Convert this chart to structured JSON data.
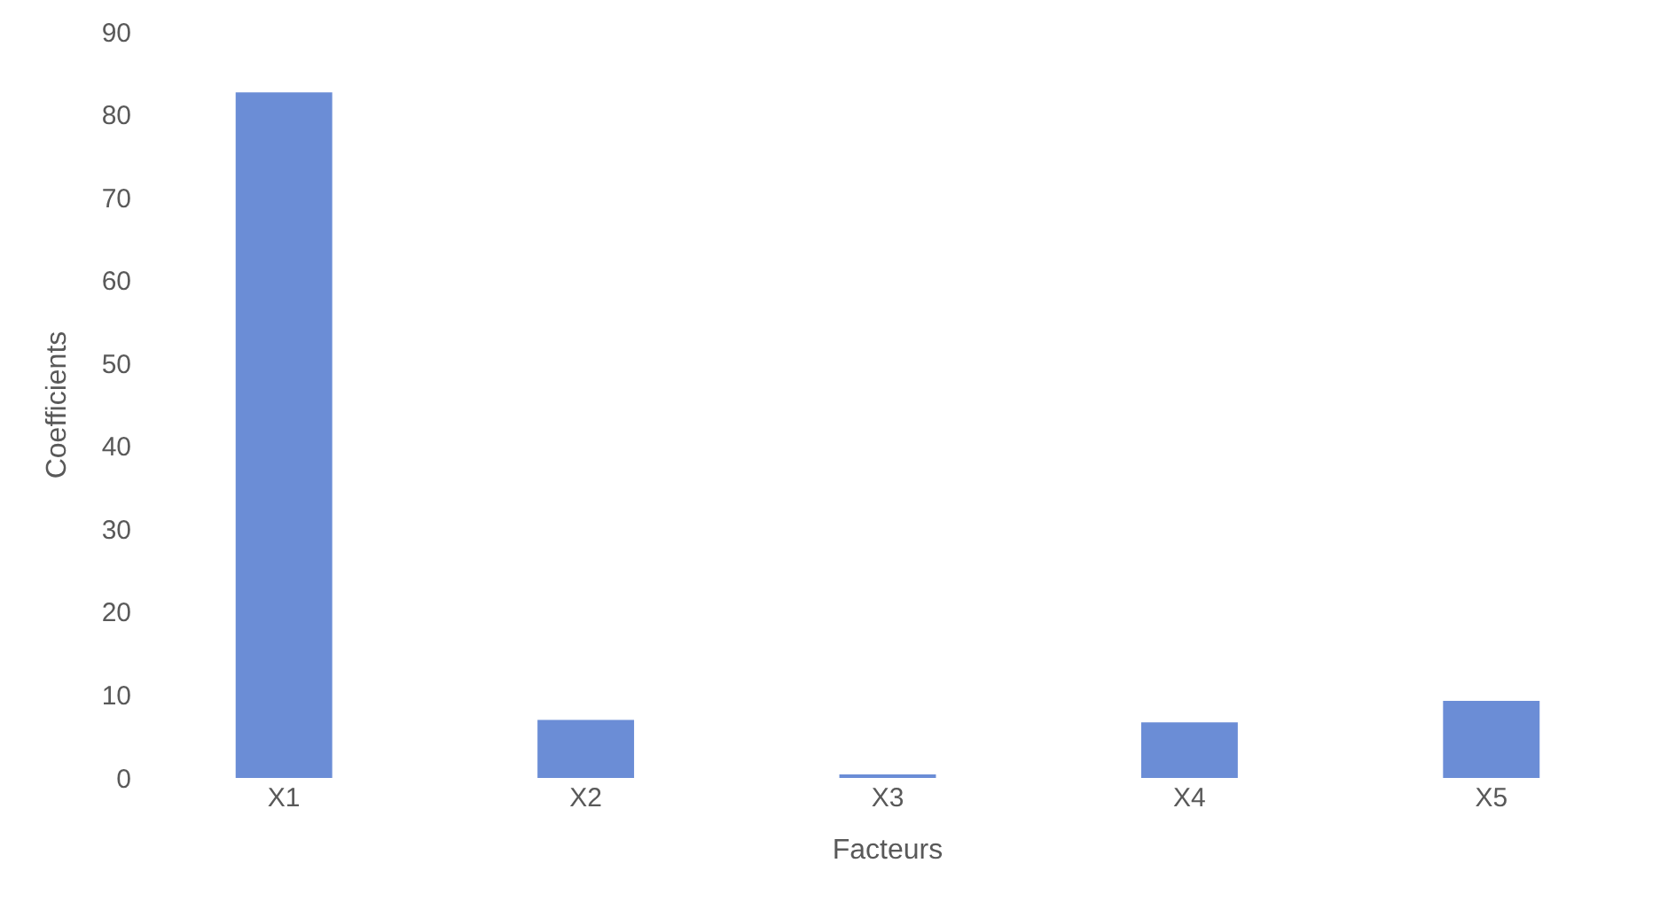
{
  "chart_data": {
    "type": "bar",
    "xlabel": "Facteurs",
    "ylabel": "Coefficients",
    "categories": [
      "X1",
      "X2",
      "X3",
      "X4",
      "X5"
    ],
    "values": [
      82.7,
      7.0,
      0.4,
      6.7,
      9.3
    ],
    "color": "#6b8dd6",
    "ylim": [
      0,
      90
    ],
    "yticks": [
      0,
      10,
      20,
      30,
      40,
      50,
      60,
      70,
      80,
      90
    ]
  }
}
